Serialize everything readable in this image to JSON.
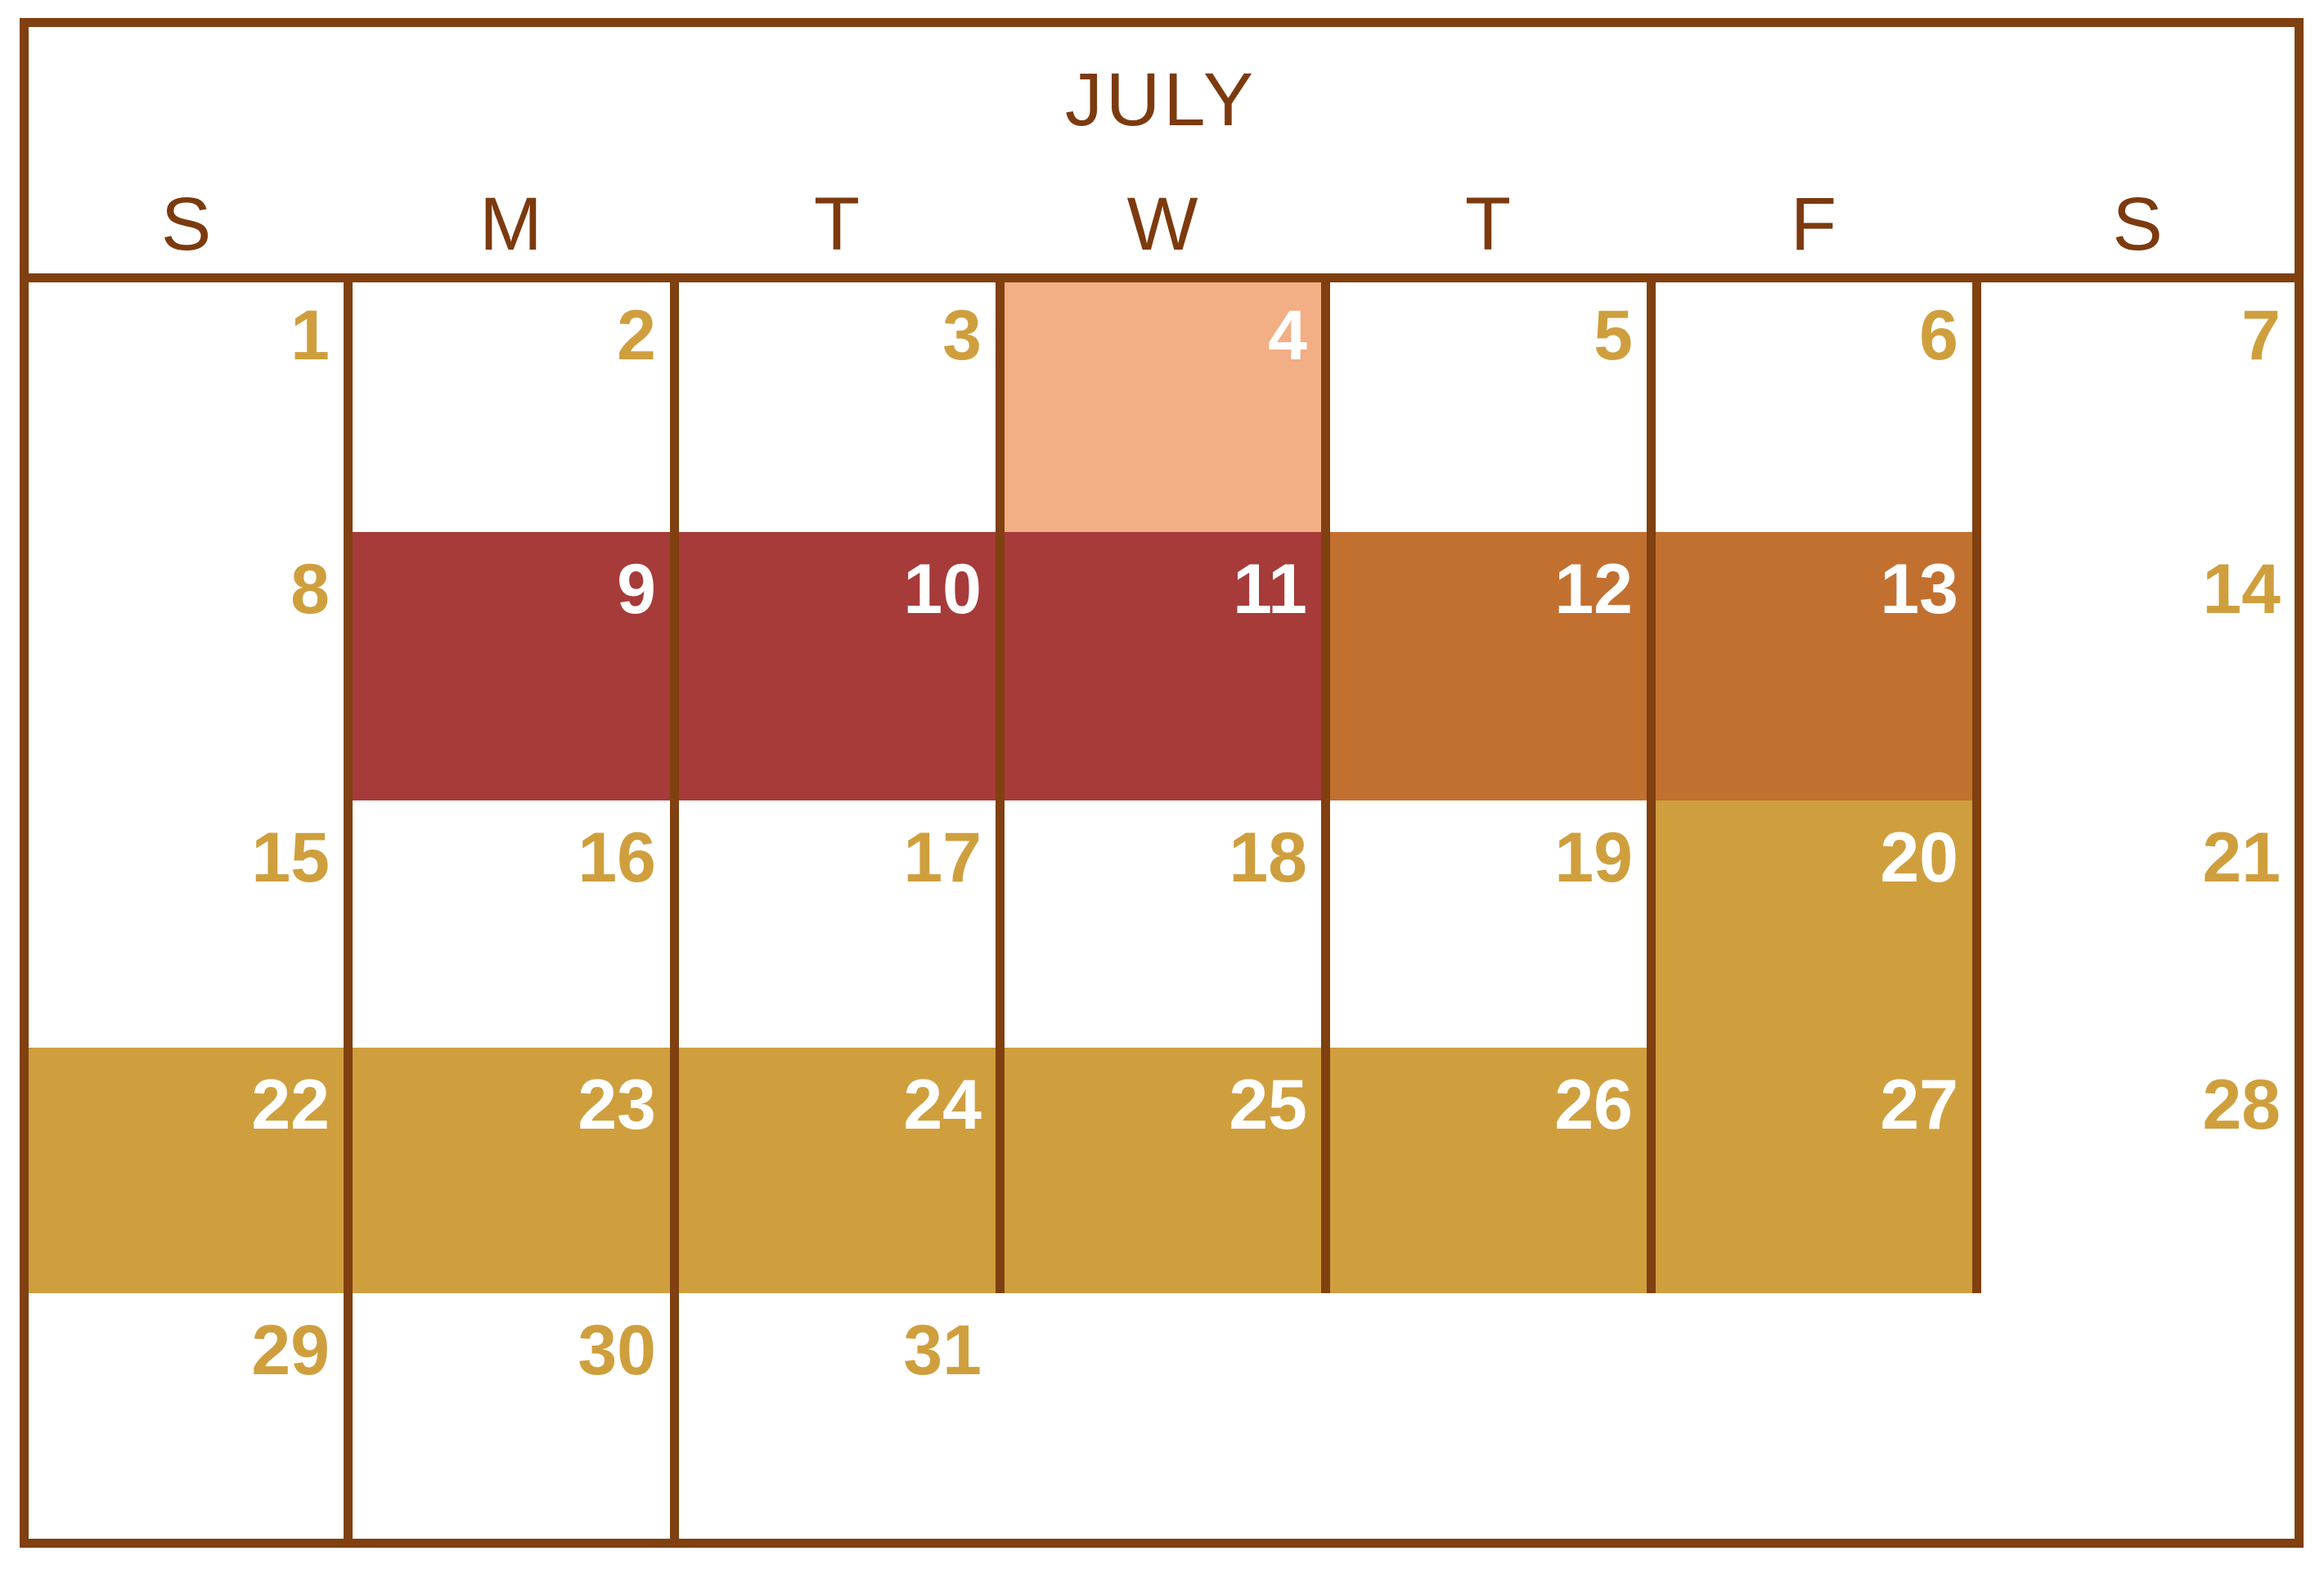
{
  "month": "JULY",
  "weekdays": [
    "S",
    "M",
    "T",
    "W",
    "T",
    "F",
    "S"
  ],
  "days": [
    "1",
    "2",
    "3",
    "4",
    "5",
    "6",
    "7",
    "8",
    "9",
    "10",
    "11",
    "12",
    "13",
    "14",
    "15",
    "16",
    "17",
    "18",
    "19",
    "20",
    "21",
    "22",
    "23",
    "24",
    "25",
    "26",
    "27",
    "28",
    "29",
    "30",
    "31"
  ],
  "first_weekday_index": 0,
  "colors": {
    "border": "#80400f",
    "text_default": "#cf9f3e",
    "text_highlight": "#ffffff",
    "peach": "#f2ae84",
    "red": "#a63b3a",
    "orange": "#c27030",
    "gold": "#cf9f3e"
  },
  "highlights": [
    {
      "days": [
        "4"
      ],
      "color": "peach"
    },
    {
      "days": [
        "9",
        "10",
        "11"
      ],
      "color": "red"
    },
    {
      "days": [
        "12",
        "13"
      ],
      "color": "orange"
    },
    {
      "days": [
        "20"
      ],
      "color": "gold"
    },
    {
      "days": [
        "22",
        "23",
        "24",
        "25",
        "26",
        "27"
      ],
      "color": "gold"
    }
  ]
}
